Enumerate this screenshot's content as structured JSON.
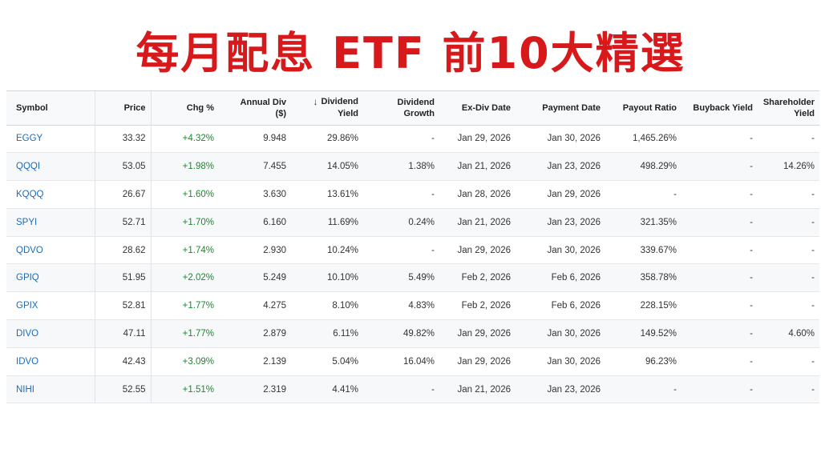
{
  "title": "每月配息 ETF 前10大精選",
  "headers": {
    "symbol": "Symbol",
    "price": "Price",
    "chg": "Chg %",
    "annual_div_1": "Annual Div",
    "annual_div_2": "($)",
    "sort_icon": "↓",
    "div_yield_1": "Dividend",
    "div_yield_2": "Yield",
    "div_growth_1": "Dividend",
    "div_growth_2": "Growth",
    "exdiv": "Ex-Div Date",
    "paydate": "Payment Date",
    "payout": "Payout Ratio",
    "buyback": "Buyback Yield",
    "sh_yield_1": "Shareholder",
    "sh_yield_2": "Yield"
  },
  "rows": [
    {
      "symbol": "EGGY",
      "price": "33.32",
      "chg": "+4.32%",
      "annual_div": "9.948",
      "yield": "29.86%",
      "growth": "-",
      "exdiv": "Jan 29, 2026",
      "paydate": "Jan 30, 2026",
      "payout": "1,465.26%",
      "buyback": "-",
      "sh_yield": "-"
    },
    {
      "symbol": "QQQI",
      "price": "53.05",
      "chg": "+1.98%",
      "annual_div": "7.455",
      "yield": "14.05%",
      "growth": "1.38%",
      "exdiv": "Jan 21, 2026",
      "paydate": "Jan 23, 2026",
      "payout": "498.29%",
      "buyback": "-",
      "sh_yield": "14.26%"
    },
    {
      "symbol": "KQQQ",
      "price": "26.67",
      "chg": "+1.60%",
      "annual_div": "3.630",
      "yield": "13.61%",
      "growth": "-",
      "exdiv": "Jan 28, 2026",
      "paydate": "Jan 29, 2026",
      "payout": "-",
      "buyback": "-",
      "sh_yield": "-"
    },
    {
      "symbol": "SPYI",
      "price": "52.71",
      "chg": "+1.70%",
      "annual_div": "6.160",
      "yield": "11.69%",
      "growth": "0.24%",
      "exdiv": "Jan 21, 2026",
      "paydate": "Jan 23, 2026",
      "payout": "321.35%",
      "buyback": "-",
      "sh_yield": "-"
    },
    {
      "symbol": "QDVO",
      "price": "28.62",
      "chg": "+1.74%",
      "annual_div": "2.930",
      "yield": "10.24%",
      "growth": "-",
      "exdiv": "Jan 29, 2026",
      "paydate": "Jan 30, 2026",
      "payout": "339.67%",
      "buyback": "-",
      "sh_yield": "-"
    },
    {
      "symbol": "GPIQ",
      "price": "51.95",
      "chg": "+2.02%",
      "annual_div": "5.249",
      "yield": "10.10%",
      "growth": "5.49%",
      "exdiv": "Feb 2, 2026",
      "paydate": "Feb 6, 2026",
      "payout": "358.78%",
      "buyback": "-",
      "sh_yield": "-"
    },
    {
      "symbol": "GPIX",
      "price": "52.81",
      "chg": "+1.77%",
      "annual_div": "4.275",
      "yield": "8.10%",
      "growth": "4.83%",
      "exdiv": "Feb 2, 2026",
      "paydate": "Feb 6, 2026",
      "payout": "228.15%",
      "buyback": "-",
      "sh_yield": "-"
    },
    {
      "symbol": "DIVO",
      "price": "47.11",
      "chg": "+1.77%",
      "annual_div": "2.879",
      "yield": "6.11%",
      "growth": "49.82%",
      "exdiv": "Jan 29, 2026",
      "paydate": "Jan 30, 2026",
      "payout": "149.52%",
      "buyback": "-",
      "sh_yield": "4.60%"
    },
    {
      "symbol": "IDVO",
      "price": "42.43",
      "chg": "+3.09%",
      "annual_div": "2.139",
      "yield": "5.04%",
      "growth": "16.04%",
      "exdiv": "Jan 29, 2026",
      "paydate": "Jan 30, 2026",
      "payout": "96.23%",
      "buyback": "-",
      "sh_yield": "-"
    },
    {
      "symbol": "NIHI",
      "price": "52.55",
      "chg": "+1.51%",
      "annual_div": "2.319",
      "yield": "4.41%",
      "growth": "-",
      "exdiv": "Jan 21, 2026",
      "paydate": "Jan 23, 2026",
      "payout": "-",
      "buyback": "-",
      "sh_yield": "-"
    }
  ],
  "colors": {
    "title": "#d7191c",
    "symbol_link": "#1e6bb8",
    "positive": "#178a2b"
  }
}
